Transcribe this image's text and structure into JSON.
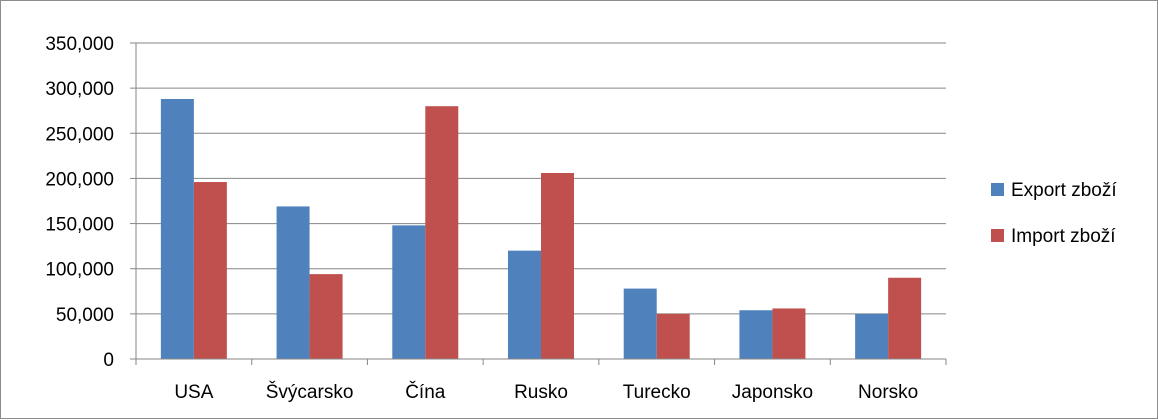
{
  "chart_data": {
    "type": "bar",
    "categories": [
      "USA",
      "Švýcarsko",
      "Čína",
      "Rusko",
      "Turecko",
      "Japonsko",
      "Norsko"
    ],
    "series": [
      {
        "name": "Export zboží",
        "color": "#4f81bd",
        "values": [
          288000,
          169000,
          148000,
          120000,
          78000,
          54000,
          50000
        ]
      },
      {
        "name": "Import zboží",
        "color": "#c0504d",
        "values": [
          196000,
          94000,
          280000,
          206000,
          50000,
          56000,
          90000
        ]
      }
    ],
    "y_ticks": [
      "0",
      "50,000",
      "100,000",
      "150,000",
      "200,000",
      "250,000",
      "300,000",
      "350,000"
    ],
    "ylim": [
      0,
      350000
    ],
    "grid": true,
    "legend_position": "right",
    "title": "",
    "xlabel": "",
    "ylabel": ""
  }
}
